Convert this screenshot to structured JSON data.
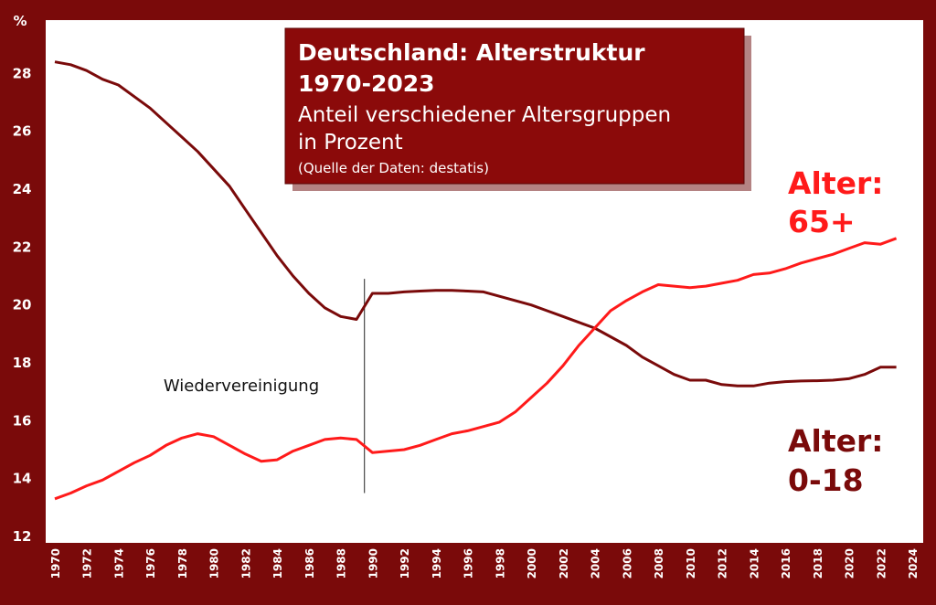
{
  "chart_data": {
    "type": "line",
    "title": "Deutschland: Alterstruktur 1970-2023",
    "subtitle": "Anteil verschiedener Altersgruppen in Prozent",
    "source": "(Quelle der Daten: destatis)",
    "title_line1": "Deutschland: Alterstruktur",
    "title_line2": "1970-2023",
    "subtitle_line1": "Anteil verschiedener Altersgruppen",
    "subtitle_line2": "in Prozent",
    "ylabel": "%",
    "ylim": [
      12,
      30
    ],
    "yticks": [
      12,
      14,
      16,
      18,
      20,
      22,
      24,
      26,
      28
    ],
    "xlim": [
      1970,
      2024
    ],
    "xticks": [
      1970,
      1972,
      1974,
      1976,
      1978,
      1980,
      1982,
      1984,
      1986,
      1988,
      1990,
      1992,
      1994,
      1996,
      1998,
      2000,
      2002,
      2004,
      2006,
      2008,
      2010,
      2012,
      2014,
      2016,
      2018,
      2020,
      2022,
      2024
    ],
    "grid": false,
    "annotation": {
      "text": "Wiedervereinigung",
      "x": 1989.5
    },
    "colors": {
      "background": "#7a0a0a",
      "plot": "#ffffff",
      "series_65": "#ff1a1a",
      "series_0_18": "#7a0a0a",
      "title_box": "#8b0a0a"
    },
    "x": [
      1970,
      1971,
      1972,
      1973,
      1974,
      1975,
      1976,
      1977,
      1978,
      1979,
      1980,
      1981,
      1982,
      1983,
      1984,
      1985,
      1986,
      1987,
      1988,
      1989,
      1990,
      1991,
      1992,
      1993,
      1994,
      1995,
      1996,
      1997,
      1998,
      1999,
      2000,
      2001,
      2002,
      2003,
      2004,
      2005,
      2006,
      2007,
      2008,
      2009,
      2010,
      2011,
      2012,
      2013,
      2014,
      2015,
      2016,
      2017,
      2018,
      2019,
      2020,
      2021,
      2022,
      2023
    ],
    "series": [
      {
        "name": "Alter: 0-18",
        "label_line1": "Alter:",
        "label_line2": "0-18",
        "color": "#7a0a0a",
        "values": [
          28.4,
          28.3,
          28.1,
          27.8,
          27.6,
          27.2,
          26.8,
          26.3,
          25.8,
          25.3,
          24.7,
          24.1,
          23.3,
          22.5,
          21.7,
          21.0,
          20.4,
          19.9,
          19.6,
          19.5,
          20.4,
          20.4,
          20.45,
          20.48,
          20.5,
          20.5,
          20.48,
          20.45,
          20.3,
          20.15,
          20.0,
          19.8,
          19.6,
          19.4,
          19.2,
          18.9,
          18.6,
          18.2,
          17.9,
          17.6,
          17.4,
          17.4,
          17.25,
          17.2,
          17.2,
          17.3,
          17.35,
          17.37,
          17.38,
          17.4,
          17.45,
          17.6,
          17.85,
          17.85
        ]
      },
      {
        "name": "Alter: 65+",
        "label_line1": "Alter:",
        "label_line2": "65+",
        "color": "#ff1a1a",
        "values": [
          13.3,
          13.5,
          13.75,
          13.95,
          14.25,
          14.55,
          14.8,
          15.15,
          15.4,
          15.55,
          15.45,
          15.15,
          14.85,
          14.6,
          14.65,
          14.95,
          15.15,
          15.35,
          15.4,
          15.35,
          14.9,
          14.95,
          15.0,
          15.15,
          15.35,
          15.55,
          15.65,
          15.8,
          15.95,
          16.3,
          16.8,
          17.3,
          17.9,
          18.6,
          19.2,
          19.8,
          20.15,
          20.45,
          20.7,
          20.65,
          20.6,
          20.65,
          20.75,
          20.85,
          21.05,
          21.1,
          21.25,
          21.45,
          21.6,
          21.75,
          21.95,
          22.15,
          22.1,
          22.3
        ]
      }
    ]
  }
}
